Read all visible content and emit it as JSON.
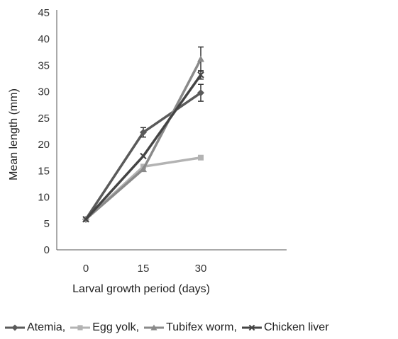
{
  "chart_data": {
    "type": "line",
    "xlabel": "Larval growth period (days)",
    "ylabel": "Mean length  (mm)",
    "x": [
      0,
      15,
      30
    ],
    "x_tick_labels": [
      "0",
      "15",
      "30"
    ],
    "ylim": [
      0,
      45
    ],
    "y_ticks": [
      0,
      5,
      10,
      15,
      20,
      25,
      30,
      35,
      40,
      45
    ],
    "y_tick_labels": [
      "0",
      "5",
      "10",
      "15",
      "20",
      "25",
      "30",
      "35",
      "40",
      "45"
    ],
    "grid": false,
    "legend_position": "bottom",
    "series": [
      {
        "name": "Atemia,",
        "legend_label": "Atemia,",
        "marker": "diamond",
        "color": "#5a5a5a",
        "values": [
          5.8,
          22.3,
          29.8
        ],
        "error": [
          0,
          0.9,
          1.6
        ]
      },
      {
        "name": "Egg yolk,",
        "legend_label": "Egg yolk,",
        "marker": "square",
        "color": "#b3b3b3",
        "values": [
          5.8,
          15.8,
          17.5
        ],
        "error": [
          0,
          0,
          0
        ]
      },
      {
        "name": "Tubifex worm,",
        "legend_label": "Tubifex worm,",
        "marker": "triangle",
        "color": "#8a8a8a",
        "values": [
          5.8,
          15.3,
          36.2
        ],
        "error": [
          0,
          0,
          2.3
        ]
      },
      {
        "name": "Chicken liver",
        "legend_label": "Chicken liver",
        "marker": "x",
        "color": "#444444",
        "values": [
          5.8,
          17.8,
          33.2
        ],
        "error": [
          0,
          0,
          0.8
        ]
      }
    ]
  }
}
